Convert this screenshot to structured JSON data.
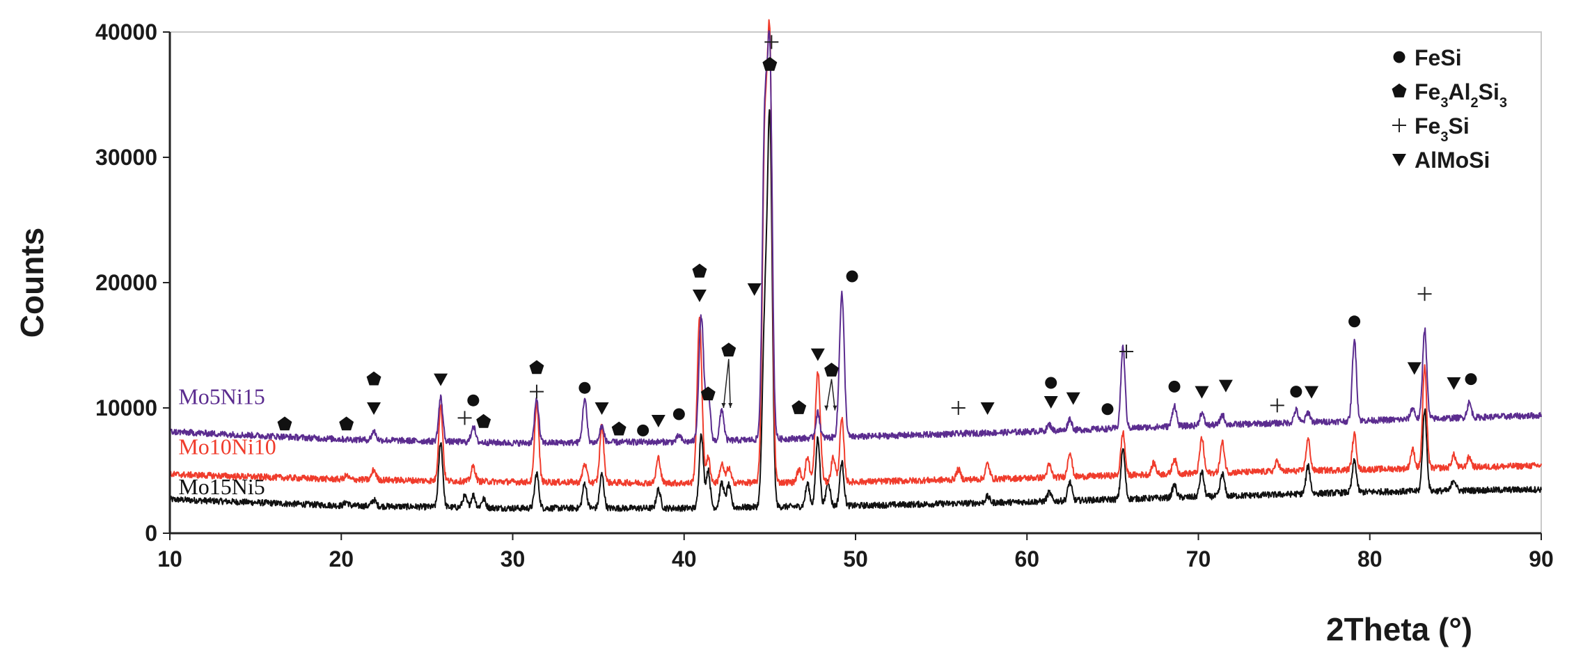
{
  "chart_data": {
    "type": "line",
    "title": "",
    "xlabel": "2Theta (°)",
    "ylabel": "Counts",
    "xlim": [
      10,
      90
    ],
    "ylim": [
      0,
      40000
    ],
    "xticks": [
      10,
      20,
      30,
      40,
      50,
      60,
      70,
      80,
      90
    ],
    "yticks": [
      0,
      10000,
      20000,
      30000,
      40000
    ],
    "grid": false,
    "legend_position": "top-right",
    "legend": [
      {
        "marker": "circle",
        "label": "FeSi",
        "formula": [
          [
            "Fe",
            ""
          ],
          [
            "Si",
            ""
          ]
        ]
      },
      {
        "marker": "pentagon",
        "label": "Fe3Al2Si3",
        "formula": [
          [
            "Fe",
            "3"
          ],
          [
            "Al",
            "2"
          ],
          [
            "Si",
            "3"
          ]
        ]
      },
      {
        "marker": "plus",
        "label": "Fe3Si",
        "formula": [
          [
            "Fe",
            "3"
          ],
          [
            "Si",
            ""
          ]
        ]
      },
      {
        "marker": "triangle-down",
        "label": "AlMoSi",
        "formula": [
          [
            "AlMoSi",
            ""
          ]
        ]
      }
    ],
    "peaks": [
      {
        "x": 16.7,
        "r": 1
      },
      {
        "x": 20.3,
        "r": 1
      },
      {
        "x": 21.9,
        "r": 2
      },
      {
        "x": 25.8,
        "r": 5
      },
      {
        "x": 27.2,
        "r": 1
      },
      {
        "x": 27.7,
        "r": 2
      },
      {
        "x": 28.3,
        "r": 1
      },
      {
        "x": 31.4,
        "r": 5
      },
      {
        "x": 34.2,
        "r": 3
      },
      {
        "x": 35.2,
        "r": 2
      },
      {
        "x": 36.2,
        "r": 1
      },
      {
        "x": 37.6,
        "r": 1
      },
      {
        "x": 38.5,
        "r": 2
      },
      {
        "x": 39.7,
        "r": 1
      },
      {
        "x": 40.9,
        "r": 15
      },
      {
        "x": 41.4,
        "r": 3
      },
      {
        "x": 42.2,
        "r": 3
      },
      {
        "x": 42.6,
        "r": 2
      },
      {
        "x": 44.1,
        "r": 3
      },
      {
        "x": 44.7,
        "r": 22
      },
      {
        "x": 45.0,
        "r": 100
      },
      {
        "x": 46.7,
        "r": 1
      },
      {
        "x": 47.2,
        "r": 3
      },
      {
        "x": 47.8,
        "r": 9
      },
      {
        "x": 48.4,
        "r": 3
      },
      {
        "x": 48.7,
        "r": 3
      },
      {
        "x": 49.2,
        "r": 18
      },
      {
        "x": 56.0,
        "r": 1
      },
      {
        "x": 57.7,
        "r": 1
      },
      {
        "x": 61.3,
        "r": 1
      },
      {
        "x": 62.5,
        "r": 2
      },
      {
        "x": 64.7,
        "r": 1
      },
      {
        "x": 65.6,
        "r": 7
      },
      {
        "x": 68.6,
        "r": 2
      },
      {
        "x": 70.2,
        "r": 3
      },
      {
        "x": 71.4,
        "r": 2
      },
      {
        "x": 74.6,
        "r": 1
      },
      {
        "x": 75.7,
        "r": 1
      },
      {
        "x": 76.4,
        "r": 2
      },
      {
        "x": 79.1,
        "r": 8
      },
      {
        "x": 82.5,
        "r": 2
      },
      {
        "x": 83.2,
        "r": 10
      },
      {
        "x": 84.9,
        "r": 1
      },
      {
        "x": 85.8,
        "r": 1
      }
    ],
    "series": [
      {
        "name": "Mo5Ni15",
        "color": "#5b2c8f",
        "label_at": [
          10.5,
          10300
        ],
        "baseline": [
          [
            10,
            8100
          ],
          [
            20,
            7500
          ],
          [
            30,
            7200
          ],
          [
            40,
            7300
          ],
          [
            50,
            7700
          ],
          [
            60,
            8100
          ],
          [
            70,
            8600
          ],
          [
            80,
            9000
          ],
          [
            90,
            9400
          ]
        ],
        "peak_heights": [
          [
            41.0,
            10000
          ],
          [
            41.4,
            4000
          ],
          [
            42.2,
            2500
          ],
          [
            44.7,
            24000
          ],
          [
            45.0,
            29700
          ],
          [
            47.8,
            2000
          ],
          [
            49.2,
            11500
          ],
          [
            34.2,
            3500
          ],
          [
            31.4,
            3500
          ],
          [
            25.8,
            3500
          ],
          [
            27.7,
            1300
          ],
          [
            21.9,
            700
          ],
          [
            35.2,
            1300
          ],
          [
            65.6,
            6500
          ],
          [
            68.6,
            1700
          ],
          [
            79.1,
            6500
          ],
          [
            83.2,
            7200
          ],
          [
            85.8,
            1200
          ],
          [
            62.5,
            900
          ],
          [
            70.2,
            1000
          ],
          [
            71.4,
            800
          ],
          [
            75.7,
            1000
          ],
          [
            76.4,
            800
          ],
          [
            82.5,
            900
          ],
          [
            61.3,
            500
          ],
          [
            39.7,
            500
          ]
        ]
      },
      {
        "name": "Mo10Ni10",
        "color": "#f03c2c",
        "label_at": [
          10.5,
          6300
        ],
        "baseline": [
          [
            10,
            4700
          ],
          [
            20,
            4300
          ],
          [
            30,
            4100
          ],
          [
            40,
            4000
          ],
          [
            50,
            4100
          ],
          [
            60,
            4400
          ],
          [
            70,
            4800
          ],
          [
            80,
            5100
          ],
          [
            90,
            5400
          ]
        ],
        "peak_heights": [
          [
            40.9,
            13000
          ],
          [
            41.4,
            2000
          ],
          [
            42.2,
            1500
          ],
          [
            42.6,
            1200
          ],
          [
            44.7,
            26000
          ],
          [
            45.0,
            33500
          ],
          [
            47.8,
            8800
          ],
          [
            48.7,
            2000
          ],
          [
            49.2,
            5000
          ],
          [
            25.8,
            6000
          ],
          [
            31.4,
            6400
          ],
          [
            35.2,
            4500
          ],
          [
            34.2,
            1500
          ],
          [
            38.5,
            2000
          ],
          [
            27.7,
            1200
          ],
          [
            21.9,
            800
          ],
          [
            20.3,
            300
          ],
          [
            65.6,
            3400
          ],
          [
            62.5,
            2000
          ],
          [
            61.3,
            1000
          ],
          [
            57.7,
            1200
          ],
          [
            56.0,
            800
          ],
          [
            67.4,
            900
          ],
          [
            68.6,
            1200
          ],
          [
            70.2,
            2800
          ],
          [
            71.4,
            2400
          ],
          [
            74.6,
            800
          ],
          [
            76.4,
            2500
          ],
          [
            79.1,
            2800
          ],
          [
            83.2,
            8000
          ],
          [
            84.9,
            1000
          ],
          [
            85.8,
            800
          ],
          [
            82.5,
            1500
          ],
          [
            47.2,
            2000
          ],
          [
            46.7,
            1000
          ]
        ]
      },
      {
        "name": "Mo15Ni5",
        "color": "#111111",
        "label_at": [
          10.5,
          3100
        ],
        "baseline": [
          [
            10,
            2700
          ],
          [
            20,
            2200
          ],
          [
            30,
            2000
          ],
          [
            40,
            2000
          ],
          [
            50,
            2200
          ],
          [
            60,
            2500
          ],
          [
            70,
            2900
          ],
          [
            80,
            3300
          ],
          [
            90,
            3500
          ]
        ],
        "peak_heights": [
          [
            41.0,
            6000
          ],
          [
            41.4,
            3000
          ],
          [
            42.2,
            2000
          ],
          [
            42.6,
            1800
          ],
          [
            44.7,
            14000
          ],
          [
            45.0,
            30000
          ],
          [
            47.2,
            1800
          ],
          [
            47.8,
            5500
          ],
          [
            48.4,
            2000
          ],
          [
            49.2,
            3500
          ],
          [
            25.8,
            5200
          ],
          [
            31.4,
            2800
          ],
          [
            35.2,
            2700
          ],
          [
            34.2,
            2000
          ],
          [
            38.5,
            1500
          ],
          [
            27.2,
            900
          ],
          [
            27.7,
            1000
          ],
          [
            28.3,
            700
          ],
          [
            21.9,
            500
          ],
          [
            20.3,
            300
          ],
          [
            65.6,
            4000
          ],
          [
            62.5,
            1500
          ],
          [
            68.6,
            1000
          ],
          [
            70.2,
            2000
          ],
          [
            71.4,
            1800
          ],
          [
            76.4,
            2200
          ],
          [
            79.1,
            2500
          ],
          [
            83.2,
            6500
          ],
          [
            84.9,
            900
          ],
          [
            61.3,
            700
          ],
          [
            57.7,
            500
          ]
        ]
      }
    ],
    "annotations": [
      {
        "marker": "pentagon",
        "x": 16.7,
        "y": 8700
      },
      {
        "marker": "pentagon",
        "x": 20.3,
        "y": 8700
      },
      {
        "marker": "pentagon",
        "x": 21.9,
        "y": 12300
      },
      {
        "marker": "triangle-down",
        "x": 21.9,
        "y": 10000
      },
      {
        "marker": "triangle-down",
        "x": 25.8,
        "y": 12300
      },
      {
        "marker": "plus",
        "x": 27.2,
        "y": 9200
      },
      {
        "marker": "circle",
        "x": 27.7,
        "y": 10600
      },
      {
        "marker": "pentagon",
        "x": 28.3,
        "y": 8900
      },
      {
        "marker": "pentagon",
        "x": 31.4,
        "y": 13200
      },
      {
        "marker": "plus",
        "x": 31.4,
        "y": 11300
      },
      {
        "marker": "circle",
        "x": 34.2,
        "y": 11600
      },
      {
        "marker": "triangle-down",
        "x": 35.2,
        "y": 10000
      },
      {
        "marker": "pentagon",
        "x": 36.2,
        "y": 8300
      },
      {
        "marker": "circle",
        "x": 37.6,
        "y": 8200
      },
      {
        "marker": "triangle-down",
        "x": 38.5,
        "y": 9000
      },
      {
        "marker": "circle",
        "x": 39.7,
        "y": 9500
      },
      {
        "marker": "pentagon",
        "x": 40.9,
        "y": 20900
      },
      {
        "marker": "triangle-down",
        "x": 40.9,
        "y": 19000
      },
      {
        "marker": "pentagon",
        "x": 41.4,
        "y": 11100
      },
      {
        "marker": "pentagon",
        "x": 42.6,
        "y": 14600
      },
      {
        "marker": "triangle-down",
        "x": 44.1,
        "y": 19500
      },
      {
        "marker": "plus",
        "x": 45.1,
        "y": 39200
      },
      {
        "marker": "pentagon",
        "x": 45.0,
        "y": 37400
      },
      {
        "marker": "pentagon",
        "x": 46.7,
        "y": 10000
      },
      {
        "marker": "triangle-down",
        "x": 47.8,
        "y": 14300
      },
      {
        "marker": "pentagon",
        "x": 48.6,
        "y": 13000
      },
      {
        "marker": "circle",
        "x": 49.8,
        "y": 20500
      },
      {
        "marker": "plus",
        "x": 56.0,
        "y": 10000
      },
      {
        "marker": "triangle-down",
        "x": 57.7,
        "y": 10000
      },
      {
        "marker": "circle",
        "x": 61.4,
        "y": 12000
      },
      {
        "marker": "triangle-down",
        "x": 61.4,
        "y": 10500
      },
      {
        "marker": "triangle-down",
        "x": 62.7,
        "y": 10800
      },
      {
        "marker": "circle",
        "x": 64.7,
        "y": 9900
      },
      {
        "marker": "plus",
        "x": 65.8,
        "y": 14500
      },
      {
        "marker": "circle",
        "x": 68.6,
        "y": 11700
      },
      {
        "marker": "triangle-down",
        "x": 70.2,
        "y": 11300
      },
      {
        "marker": "triangle-down",
        "x": 71.6,
        "y": 11800
      },
      {
        "marker": "plus",
        "x": 74.6,
        "y": 10200
      },
      {
        "marker": "circle",
        "x": 75.7,
        "y": 11300
      },
      {
        "marker": "triangle-down",
        "x": 76.6,
        "y": 11300
      },
      {
        "marker": "circle",
        "x": 79.1,
        "y": 16900
      },
      {
        "marker": "triangle-down",
        "x": 82.6,
        "y": 13200
      },
      {
        "marker": "plus",
        "x": 83.2,
        "y": 19100
      },
      {
        "marker": "triangle-down",
        "x": 84.9,
        "y": 12000
      },
      {
        "marker": "circle",
        "x": 85.9,
        "y": 12300
      }
    ],
    "arrows": [
      {
        "from": [
          42.6,
          13900
        ],
        "to": [
          42.3,
          10000
        ]
      },
      {
        "from": [
          42.6,
          13900
        ],
        "to": [
          42.7,
          10000
        ]
      },
      {
        "from": [
          48.6,
          12300
        ],
        "to": [
          48.3,
          9800
        ]
      },
      {
        "from": [
          48.6,
          12300
        ],
        "to": [
          48.8,
          9800
        ]
      }
    ]
  }
}
